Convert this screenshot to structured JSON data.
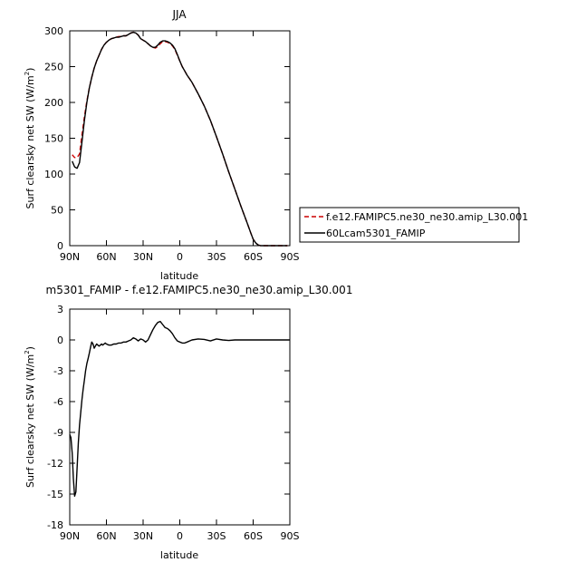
{
  "chart_data": [
    {
      "type": "line",
      "title": "JJA",
      "xlabel": "latitude",
      "ylabel": "Surf clearsky net SW (W/m²)",
      "ylabel_parts": [
        "Surf clearsky net SW (W/m",
        "2",
        ")"
      ],
      "xlim": [
        90,
        -90
      ],
      "ylim": [
        0,
        300
      ],
      "x_ticks": [
        {
          "value": 90,
          "label": "90N"
        },
        {
          "value": 60,
          "label": "60N"
        },
        {
          "value": 30,
          "label": "30N"
        },
        {
          "value": 0,
          "label": "0"
        },
        {
          "value": -30,
          "label": "30S"
        },
        {
          "value": -60,
          "label": "60S"
        },
        {
          "value": -90,
          "label": "90S"
        }
      ],
      "y_ticks": [
        {
          "value": 0,
          "label": "0"
        },
        {
          "value": 50,
          "label": "50"
        },
        {
          "value": 100,
          "label": "100"
        },
        {
          "value": 150,
          "label": "150"
        },
        {
          "value": 200,
          "label": "200"
        },
        {
          "value": 250,
          "label": "250"
        },
        {
          "value": 300,
          "label": "300"
        }
      ],
      "grid": false,
      "legend_position": "right",
      "series": [
        {
          "name": "f.e12.FAMIPC5.ne30_ne30.amip_L30.001",
          "color": "#cc0000",
          "dash": "dashed",
          "x": [
            88,
            86,
            84,
            82,
            80,
            78,
            76,
            74,
            72,
            70,
            68,
            66,
            64,
            62,
            60,
            58,
            56,
            54,
            52,
            50,
            48,
            46,
            44,
            42,
            40,
            38,
            36,
            34,
            32,
            30,
            28,
            26,
            24,
            22,
            20,
            18,
            16,
            14,
            12,
            10,
            8,
            6,
            4,
            2,
            0,
            -2,
            -4,
            -6,
            -8,
            -10,
            -15,
            -20,
            -25,
            -30,
            -35,
            -40,
            -45,
            -50,
            -55,
            -58,
            -60,
            -62,
            -64,
            -66,
            -68,
            -70,
            -75,
            -80,
            -85,
            -88
          ],
          "y": [
            127,
            123,
            123,
            128,
            155,
            180,
            202,
            220,
            235,
            248,
            258,
            266,
            274,
            280,
            284,
            287,
            289,
            290,
            291,
            292,
            292,
            293,
            293,
            295,
            297,
            298,
            297,
            294,
            289,
            287,
            285,
            282,
            279,
            277,
            276,
            278,
            282,
            285,
            285,
            284,
            282,
            279,
            274,
            266,
            258,
            250,
            244,
            238,
            233,
            228,
            212,
            195,
            175,
            152,
            128,
            103,
            79,
            55,
            32,
            18,
            9,
            4,
            1,
            0,
            0,
            0,
            0,
            0,
            0,
            0
          ]
        },
        {
          "name": "60Lcam5301_FAMIP",
          "color": "#000000",
          "dash": "solid",
          "x": [
            88,
            86,
            84,
            82,
            80,
            78,
            76,
            74,
            72,
            70,
            68,
            66,
            64,
            62,
            60,
            58,
            56,
            54,
            52,
            50,
            48,
            46,
            44,
            42,
            40,
            38,
            36,
            34,
            32,
            30,
            28,
            26,
            24,
            22,
            20,
            18,
            16,
            14,
            12,
            10,
            8,
            6,
            4,
            2,
            0,
            -2,
            -4,
            -6,
            -8,
            -10,
            -15,
            -20,
            -25,
            -30,
            -35,
            -40,
            -45,
            -50,
            -55,
            -58,
            -60,
            -62,
            -64,
            -66,
            -68,
            -70,
            -75,
            -80,
            -85,
            -88
          ],
          "y": [
            118,
            110,
            108,
            116,
            145,
            175,
            200,
            220,
            235,
            248,
            258,
            266,
            274,
            280,
            284,
            287,
            289,
            290,
            291,
            291,
            292,
            293,
            293,
            295,
            297,
            298,
            297,
            294,
            289,
            287,
            285,
            282,
            279,
            277,
            277,
            280,
            284,
            286,
            286,
            285,
            283,
            280,
            275,
            267,
            258,
            250,
            244,
            238,
            233,
            228,
            212,
            195,
            175,
            152,
            128,
            103,
            79,
            55,
            32,
            18,
            9,
            4,
            1,
            0,
            0,
            0,
            0,
            0,
            0,
            0
          ]
        }
      ]
    },
    {
      "type": "line",
      "title": "m5301_FAMIP - f.e12.FAMIPC5.ne30_ne30.amip_L30.001",
      "xlabel": "latitude",
      "ylabel": "Surf clearsky net SW (W/m²)",
      "ylabel_parts": [
        "Surf clearsky net SW (W/m",
        "2",
        ")"
      ],
      "xlim": [
        90,
        -90
      ],
      "ylim": [
        -18,
        3
      ],
      "x_ticks": [
        {
          "value": 90,
          "label": "90N"
        },
        {
          "value": 60,
          "label": "60N"
        },
        {
          "value": 30,
          "label": "30N"
        },
        {
          "value": 0,
          "label": "0"
        },
        {
          "value": -30,
          "label": "30S"
        },
        {
          "value": -60,
          "label": "60S"
        },
        {
          "value": -90,
          "label": "90S"
        }
      ],
      "y_ticks": [
        {
          "value": 3,
          "label": "3"
        },
        {
          "value": 0,
          "label": "0"
        },
        {
          "value": -3,
          "label": "-3"
        },
        {
          "value": -6,
          "label": "-6"
        },
        {
          "value": -9,
          "label": "-9"
        },
        {
          "value": -12,
          "label": "-12"
        },
        {
          "value": -15,
          "label": "-15"
        },
        {
          "value": -18,
          "label": "-18"
        }
      ],
      "grid": false,
      "series": [
        {
          "color": "#000000",
          "dash": "solid",
          "x": [
            90,
            89,
            88,
            87,
            86,
            85,
            84,
            83,
            82,
            81,
            80,
            79,
            78,
            77,
            76,
            75,
            74,
            73,
            72,
            71,
            70,
            69,
            68,
            67,
            66,
            65,
            64,
            63,
            62,
            61,
            60,
            58,
            56,
            54,
            52,
            50,
            48,
            46,
            44,
            42,
            40,
            38,
            36,
            34,
            32,
            30,
            28,
            26,
            24,
            22,
            20,
            18,
            16,
            14,
            12,
            10,
            8,
            6,
            4,
            2,
            0,
            -2,
            -4,
            -6,
            -8,
            -10,
            -15,
            -20,
            -25,
            -30,
            -35,
            -40,
            -45,
            -50,
            -55,
            -60,
            -65,
            -70,
            -80,
            -90
          ],
          "y": [
            -9.2,
            -9.5,
            -11.0,
            -13.5,
            -15.2,
            -14.8,
            -12.5,
            -10.0,
            -8.3,
            -7.0,
            -5.8,
            -4.8,
            -3.9,
            -3.0,
            -2.3,
            -1.8,
            -1.3,
            -0.7,
            -0.2,
            -0.4,
            -0.8,
            -0.6,
            -0.4,
            -0.5,
            -0.6,
            -0.5,
            -0.4,
            -0.5,
            -0.4,
            -0.3,
            -0.4,
            -0.5,
            -0.5,
            -0.4,
            -0.4,
            -0.3,
            -0.3,
            -0.2,
            -0.2,
            -0.1,
            0.0,
            0.2,
            0.1,
            -0.1,
            0.1,
            0.0,
            -0.2,
            0.0,
            0.5,
            1.0,
            1.4,
            1.7,
            1.8,
            1.5,
            1.2,
            1.1,
            0.9,
            0.6,
            0.2,
            -0.1,
            -0.2,
            -0.3,
            -0.3,
            -0.2,
            -0.1,
            0.0,
            0.1,
            0.05,
            -0.1,
            0.1,
            0.0,
            -0.05,
            0.0,
            0.0,
            0.0,
            0.0,
            0.0,
            0.0,
            0.0,
            0.0
          ]
        }
      ]
    }
  ]
}
